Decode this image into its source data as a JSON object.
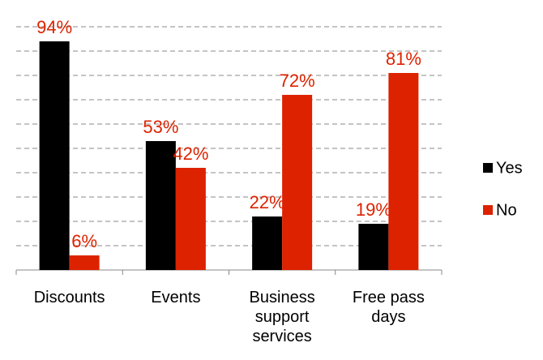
{
  "chart_data": {
    "type": "bar",
    "categories": [
      "Discounts",
      "Events",
      "Business support services",
      "Free pass days"
    ],
    "series": [
      {
        "name": "Yes",
        "color": "#000000",
        "values": [
          94,
          53,
          22,
          19
        ],
        "value_labels": [
          "94%",
          "53%",
          "22%",
          "19%"
        ]
      },
      {
        "name": "No",
        "color": "#dd2200",
        "values": [
          6,
          42,
          72,
          81
        ],
        "value_labels": [
          "6%",
          "42%",
          "72%",
          "81%"
        ]
      }
    ],
    "ylim": [
      0,
      100
    ],
    "yticks": [
      0,
      10,
      20,
      30,
      40,
      50,
      60,
      70,
      80,
      90,
      100
    ],
    "grid": true,
    "legend": "right"
  }
}
